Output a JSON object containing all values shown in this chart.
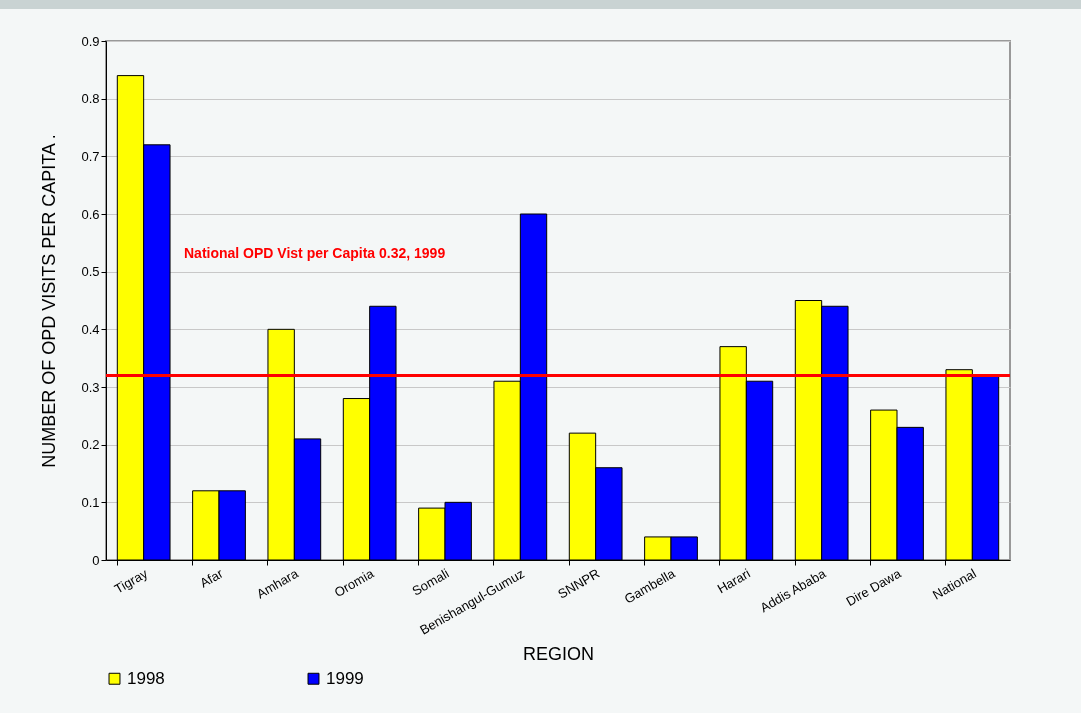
{
  "chart_data": {
    "type": "bar",
    "categories": [
      "Tigray",
      "Afar",
      "Amhara",
      "Oromia",
      "Somali",
      "Benishangul-Gumuz",
      "SNNPR",
      "Gambella",
      "Harari",
      "Addis Ababa",
      "Dire Dawa",
      "National"
    ],
    "series": [
      {
        "name": "1998",
        "color": "#ffff00",
        "values": [
          0.84,
          0.12,
          0.4,
          0.28,
          0.09,
          0.31,
          0.22,
          0.04,
          0.37,
          0.45,
          0.26,
          0.33
        ]
      },
      {
        "name": "1999",
        "color": "#0000ff",
        "values": [
          0.72,
          0.12,
          0.21,
          0.44,
          0.1,
          0.6,
          0.16,
          0.04,
          0.31,
          0.44,
          0.23,
          0.32
        ]
      }
    ],
    "xlabel": "REGION",
    "ylabel": "NUMBER OF OPD VISITS PER CAPITA      .",
    "ylim": [
      0,
      0.9
    ],
    "yticks": [
      0,
      0.1,
      0.2,
      0.3,
      0.4,
      0.5,
      0.6,
      0.7,
      0.8,
      0.9
    ],
    "grid": "y",
    "legend": "bottom",
    "ref_lines": [
      {
        "axis": "y",
        "value": 0.32,
        "color": "#ff0000"
      }
    ],
    "annotations": [
      "National OPD Vist per Capita 0.32, 1999"
    ]
  }
}
